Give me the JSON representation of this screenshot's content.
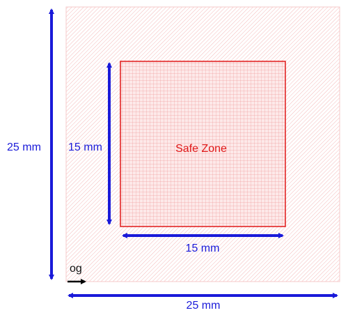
{
  "diagram": {
    "outer_dimension_horizontal": "25 mm",
    "outer_dimension_vertical": "25 mm",
    "inner_dimension_horizontal": "15 mm",
    "inner_dimension_vertical": "15 mm",
    "safe_zone_label": "Safe Zone",
    "origin_label": "og"
  },
  "colors": {
    "dimension_arrow": "#1a1ad9",
    "zone_border": "#e01818",
    "outer_hatch": "#f2b4b4",
    "inner_grid": "#f0a6a6",
    "origin_arrow": "#000000"
  }
}
